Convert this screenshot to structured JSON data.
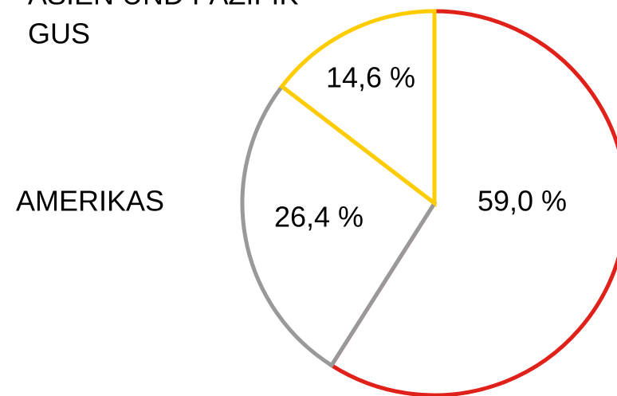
{
  "chart_data": {
    "type": "pie",
    "annotations": [
      "ASIEN UND PAZIFIK"
    ],
    "categories": [
      null,
      "AMERIKAS",
      "GUS"
    ],
    "values": [
      59.0,
      26.4,
      14.6
    ],
    "value_labels": [
      "59,0 %",
      "26,4 %",
      "14,6 %"
    ],
    "colors": [
      "#e0211a",
      "#999999",
      "#ffcc00"
    ]
  }
}
